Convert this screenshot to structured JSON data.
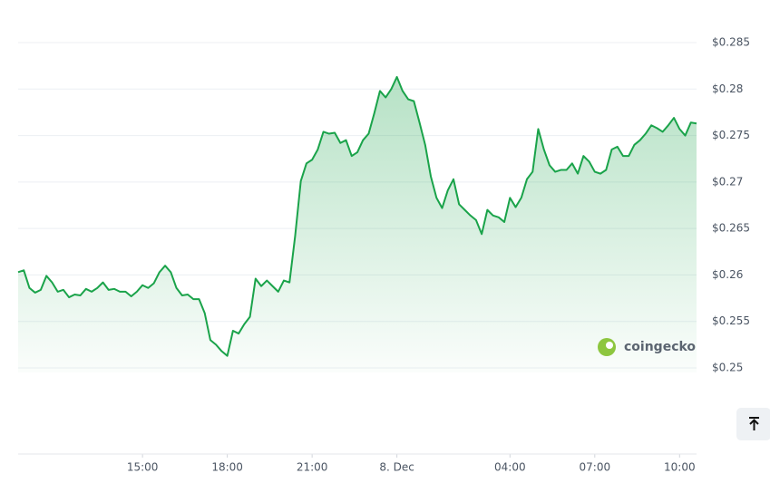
{
  "chart_data": {
    "type": "line",
    "color": "#1aa34a",
    "fill": true,
    "grid": true,
    "watermark": "coingecko",
    "x": [
      10.6,
      10.8,
      11.0,
      11.2,
      11.4,
      11.6,
      11.8,
      12.0,
      12.2,
      12.4,
      12.6,
      12.8,
      13.0,
      13.2,
      13.4,
      13.6,
      13.8,
      14.0,
      14.2,
      14.4,
      14.6,
      14.8,
      15.0,
      15.2,
      15.4,
      15.6,
      15.8,
      16.0,
      16.2,
      16.4,
      16.6,
      16.8,
      17.0,
      17.2,
      17.4,
      17.6,
      17.8,
      18.0,
      18.2,
      18.4,
      18.6,
      18.8,
      19.0,
      19.2,
      19.4,
      19.6,
      19.8,
      20.0,
      20.2,
      20.4,
      20.6,
      20.8,
      21.0,
      21.2,
      21.4,
      21.6,
      21.8,
      22.0,
      22.2,
      22.4,
      22.6,
      22.8,
      23.0,
      23.2,
      23.4,
      23.6,
      23.8,
      24.0,
      24.2,
      24.4,
      24.6,
      24.8,
      25.0,
      25.2,
      25.4,
      25.6,
      25.8,
      26.0,
      26.2,
      26.4,
      26.6,
      26.8,
      27.0,
      27.2,
      27.4,
      27.6,
      27.8,
      28.0,
      28.2,
      28.4,
      28.6,
      28.8,
      29.0,
      29.2,
      29.4,
      29.6,
      29.8,
      30.0,
      30.2,
      30.4,
      30.6,
      30.8,
      31.0,
      31.2,
      31.4,
      31.6,
      31.8,
      32.0,
      32.2,
      32.4,
      32.6,
      32.8,
      33.0,
      33.2,
      33.4,
      33.6,
      33.8,
      34.0,
      34.2,
      34.4,
      34.6
    ],
    "values": [
      0.2603,
      0.2605,
      0.2586,
      0.2581,
      0.2584,
      0.2599,
      0.2592,
      0.2582,
      0.2584,
      0.2576,
      0.2579,
      0.2578,
      0.2585,
      0.2582,
      0.2586,
      0.2592,
      0.2584,
      0.2585,
      0.2582,
      0.2582,
      0.2577,
      0.2582,
      0.2589,
      0.2586,
      0.2591,
      0.2603,
      0.261,
      0.2603,
      0.2586,
      0.2578,
      0.2579,
      0.2574,
      0.2574,
      0.2559,
      0.253,
      0.2525,
      0.2518,
      0.2513,
      0.254,
      0.2537,
      0.2547,
      0.2555,
      0.2596,
      0.2588,
      0.2594,
      0.2588,
      0.2582,
      0.2594,
      0.2592,
      0.2642,
      0.2701,
      0.272,
      0.2724,
      0.2735,
      0.2754,
      0.2752,
      0.2753,
      0.2742,
      0.2745,
      0.2728,
      0.2732,
      0.2745,
      0.2752,
      0.2774,
      0.2798,
      0.2791,
      0.28,
      0.2813,
      0.2798,
      0.2789,
      0.2787,
      0.2764,
      0.274,
      0.2706,
      0.2683,
      0.2672,
      0.2691,
      0.2703,
      0.2676,
      0.267,
      0.2664,
      0.2659,
      0.2644,
      0.267,
      0.2664,
      0.2662,
      0.2657,
      0.2683,
      0.2673,
      0.2683,
      0.2703,
      0.2711,
      0.2757,
      0.2735,
      0.2718,
      0.2711,
      0.2713,
      0.2713,
      0.272,
      0.2709,
      0.2728,
      0.2722,
      0.2711,
      0.2709,
      0.2713,
      0.2735,
      0.2738,
      0.2728,
      0.2728,
      0.274,
      0.2745,
      0.2752,
      0.2761,
      0.2758,
      0.2754,
      0.2761,
      0.2769,
      0.2757,
      0.275,
      0.2764,
      0.2763
    ],
    "xlim": [
      10.6,
      34.6
    ],
    "xticks": [
      {
        "value": 15,
        "label": "15:00"
      },
      {
        "value": 18,
        "label": "18:00"
      },
      {
        "value": 21,
        "label": "21:00"
      },
      {
        "value": 24,
        "label": "8. Dec"
      },
      {
        "value": 28,
        "label": "04:00"
      },
      {
        "value": 31,
        "label": "07:00"
      },
      {
        "value": 34,
        "label": "10:00"
      }
    ],
    "ylim": [
      0.25,
      0.285
    ],
    "yticks": [
      {
        "value": 0.25,
        "label": "$0.25"
      },
      {
        "value": 0.255,
        "label": "$0.255"
      },
      {
        "value": 0.26,
        "label": "$0.26"
      },
      {
        "value": 0.265,
        "label": "$0.265"
      },
      {
        "value": 0.27,
        "label": "$0.27"
      },
      {
        "value": 0.275,
        "label": "$0.275"
      },
      {
        "value": 0.28,
        "label": "$0.28"
      },
      {
        "value": 0.285,
        "label": "$0.285"
      }
    ]
  }
}
